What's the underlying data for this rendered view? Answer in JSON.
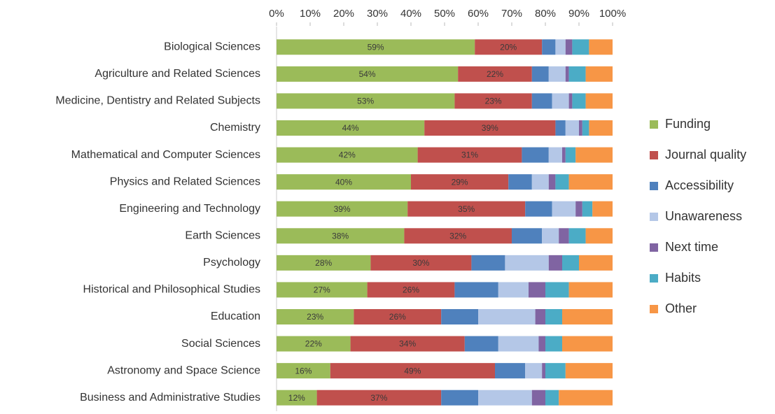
{
  "chart_data": {
    "type": "stacked_barh",
    "categories": [
      "Biological Sciences",
      "Agriculture and Related Sciences",
      "Medicine, Dentistry and Related Subjects",
      "Chemistry",
      "Mathematical and Computer Sciences",
      "Physics and Related Sciences",
      "Engineering and Technology",
      "Earth Sciences",
      "Psychology",
      "Historical and Philosophical Studies",
      "Education",
      "Social Sciences",
      "Astronomy and Space Science",
      "Business and Administrative Studies"
    ],
    "series": [
      {
        "name": "Funding",
        "color": "#9bbb59",
        "values": [
          59,
          54,
          53,
          44,
          42,
          40,
          39,
          38,
          28,
          27,
          23,
          22,
          16,
          12
        ],
        "value_labels": [
          "59%",
          "54%",
          "53%",
          "44%",
          "42%",
          "40%",
          "39%",
          "38%",
          "28%",
          "27%",
          "23%",
          "22%",
          "16%",
          "12%"
        ]
      },
      {
        "name": "Journal quality",
        "color": "#c0504d",
        "values": [
          20,
          22,
          23,
          39,
          31,
          29,
          35,
          32,
          30,
          26,
          26,
          34,
          49,
          37
        ],
        "value_labels": [
          "20%",
          "22%",
          "23%",
          "39%",
          "31%",
          "29%",
          "35%",
          "32%",
          "30%",
          "26%",
          "26%",
          "34%",
          "49%",
          "37%"
        ]
      },
      {
        "name": "Accessibility",
        "color": "#4f81bd",
        "values": [
          4,
          5,
          6,
          3,
          8,
          7,
          8,
          9,
          10,
          13,
          11,
          10,
          9,
          11
        ]
      },
      {
        "name": "Unawareness",
        "color": "#b4c7e7",
        "values": [
          3,
          5,
          5,
          4,
          4,
          5,
          7,
          5,
          13,
          9,
          17,
          12,
          5,
          16
        ]
      },
      {
        "name": "Next time",
        "color": "#8064a2",
        "values": [
          2,
          1,
          1,
          1,
          1,
          2,
          2,
          3,
          4,
          5,
          3,
          2,
          1,
          4
        ]
      },
      {
        "name": "Habits",
        "color": "#4bacc6",
        "values": [
          5,
          5,
          4,
          2,
          3,
          4,
          3,
          5,
          5,
          7,
          5,
          5,
          6,
          4
        ]
      },
      {
        "name": "Other",
        "color": "#f79646",
        "values": [
          7,
          8,
          8,
          7,
          11,
          13,
          6,
          8,
          10,
          13,
          15,
          15,
          14,
          16
        ]
      }
    ],
    "xlim": [
      0,
      100
    ],
    "xticks": [
      {
        "value": 0,
        "label": "0%"
      },
      {
        "value": 10,
        "label": "10%"
      },
      {
        "value": 20,
        "label": "20%"
      },
      {
        "value": 30,
        "label": "30%"
      },
      {
        "value": 40,
        "label": "40%"
      },
      {
        "value": 50,
        "label": "50%"
      },
      {
        "value": 60,
        "label": "60%"
      },
      {
        "value": 70,
        "label": "70%"
      },
      {
        "value": 80,
        "label": "80%"
      },
      {
        "value": 90,
        "label": "90%"
      },
      {
        "value": 100,
        "label": "100%"
      }
    ],
    "grid": false,
    "legend": "right"
  }
}
